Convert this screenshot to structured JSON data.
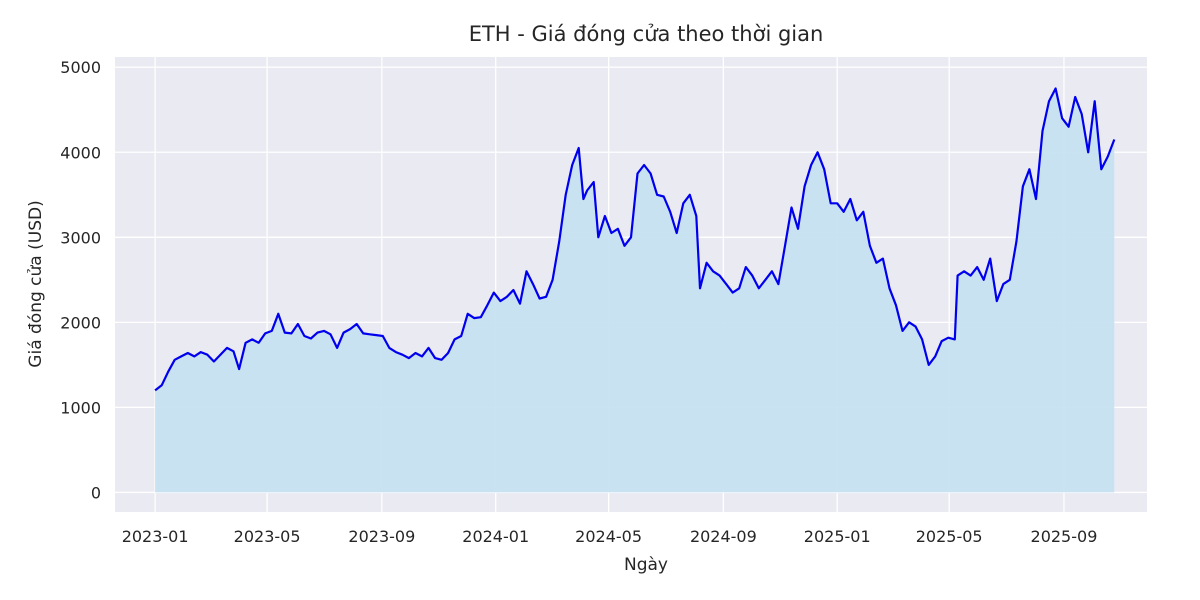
{
  "chart_data": {
    "type": "area",
    "title": "ETH - Giá đóng cửa theo thời gian",
    "xlabel": "Ngày",
    "ylabel": "Giá đóng cửa (USD)",
    "xlim": [
      "2022-11-19",
      "2025-11-29"
    ],
    "ylim": [
      -230,
      5120
    ],
    "grid": true,
    "legend": "none",
    "line_color": "#0000ee",
    "fill_color": "#c6e1f1",
    "plot_background": "#eaeaf2",
    "y_ticks": [
      0,
      1000,
      2000,
      3000,
      4000,
      5000
    ],
    "x_ticks": [
      {
        "date": "2023-01-01",
        "label": "2023-01"
      },
      {
        "date": "2023-05-01",
        "label": "2023-05"
      },
      {
        "date": "2023-09-01",
        "label": "2023-09"
      },
      {
        "date": "2024-01-01",
        "label": "2024-01"
      },
      {
        "date": "2024-05-01",
        "label": "2024-05"
      },
      {
        "date": "2024-09-01",
        "label": "2024-09"
      },
      {
        "date": "2025-01-01",
        "label": "2025-01"
      },
      {
        "date": "2025-05-01",
        "label": "2025-05"
      },
      {
        "date": "2025-09-01",
        "label": "2025-09"
      }
    ],
    "series": [
      {
        "points": [
          [
            "2023-01-01",
            1200
          ],
          [
            "2023-01-08",
            1260
          ],
          [
            "2023-01-15",
            1420
          ],
          [
            "2023-01-22",
            1560
          ],
          [
            "2023-01-29",
            1600
          ],
          [
            "2023-02-05",
            1640
          ],
          [
            "2023-02-12",
            1600
          ],
          [
            "2023-02-19",
            1650
          ],
          [
            "2023-02-26",
            1620
          ],
          [
            "2023-03-05",
            1540
          ],
          [
            "2023-03-12",
            1620
          ],
          [
            "2023-03-19",
            1700
          ],
          [
            "2023-03-26",
            1660
          ],
          [
            "2023-04-01",
            1450
          ],
          [
            "2023-04-08",
            1760
          ],
          [
            "2023-04-15",
            1800
          ],
          [
            "2023-04-22",
            1760
          ],
          [
            "2023-04-29",
            1870
          ],
          [
            "2023-05-06",
            1900
          ],
          [
            "2023-05-13",
            2100
          ],
          [
            "2023-05-20",
            1880
          ],
          [
            "2023-05-27",
            1870
          ],
          [
            "2023-06-03",
            1980
          ],
          [
            "2023-06-10",
            1840
          ],
          [
            "2023-06-17",
            1810
          ],
          [
            "2023-06-24",
            1880
          ],
          [
            "2023-07-01",
            1900
          ],
          [
            "2023-07-08",
            1860
          ],
          [
            "2023-07-15",
            1700
          ],
          [
            "2023-07-22",
            1880
          ],
          [
            "2023-07-29",
            1920
          ],
          [
            "2023-08-05",
            1980
          ],
          [
            "2023-08-12",
            1870
          ],
          [
            "2023-08-19",
            1860
          ],
          [
            "2023-08-26",
            1850
          ],
          [
            "2023-09-02",
            1840
          ],
          [
            "2023-09-09",
            1700
          ],
          [
            "2023-09-16",
            1650
          ],
          [
            "2023-09-23",
            1620
          ],
          [
            "2023-09-30",
            1580
          ],
          [
            "2023-10-07",
            1640
          ],
          [
            "2023-10-14",
            1600
          ],
          [
            "2023-10-21",
            1700
          ],
          [
            "2023-10-28",
            1580
          ],
          [
            "2023-11-04",
            1560
          ],
          [
            "2023-11-11",
            1640
          ],
          [
            "2023-11-18",
            1800
          ],
          [
            "2023-11-25",
            1840
          ],
          [
            "2023-12-02",
            2100
          ],
          [
            "2023-12-09",
            2050
          ],
          [
            "2023-12-16",
            2060
          ],
          [
            "2023-12-23",
            2200
          ],
          [
            "2023-12-30",
            2350
          ],
          [
            "2024-01-06",
            2250
          ],
          [
            "2024-01-13",
            2300
          ],
          [
            "2024-01-20",
            2380
          ],
          [
            "2024-01-27",
            2220
          ],
          [
            "2024-02-03",
            2600
          ],
          [
            "2024-02-10",
            2450
          ],
          [
            "2024-02-17",
            2280
          ],
          [
            "2024-02-24",
            2300
          ],
          [
            "2024-03-02",
            2500
          ],
          [
            "2024-03-09",
            2950
          ],
          [
            "2024-03-16",
            3500
          ],
          [
            "2024-03-23",
            3850
          ],
          [
            "2024-03-30",
            4050
          ],
          [
            "2024-04-04",
            3450
          ],
          [
            "2024-04-08",
            3550
          ],
          [
            "2024-04-15",
            3650
          ],
          [
            "2024-04-20",
            3000
          ],
          [
            "2024-04-27",
            3250
          ],
          [
            "2024-05-04",
            3050
          ],
          [
            "2024-05-11",
            3100
          ],
          [
            "2024-05-18",
            2900
          ],
          [
            "2024-05-25",
            3000
          ],
          [
            "2024-06-01",
            3750
          ],
          [
            "2024-06-08",
            3850
          ],
          [
            "2024-06-15",
            3750
          ],
          [
            "2024-06-22",
            3500
          ],
          [
            "2024-06-29",
            3480
          ],
          [
            "2024-07-06",
            3300
          ],
          [
            "2024-07-13",
            3050
          ],
          [
            "2024-07-20",
            3400
          ],
          [
            "2024-07-27",
            3500
          ],
          [
            "2024-08-03",
            3250
          ],
          [
            "2024-08-07",
            2400
          ],
          [
            "2024-08-14",
            2700
          ],
          [
            "2024-08-21",
            2600
          ],
          [
            "2024-08-28",
            2550
          ],
          [
            "2024-09-04",
            2450
          ],
          [
            "2024-09-11",
            2350
          ],
          [
            "2024-09-18",
            2400
          ],
          [
            "2024-09-25",
            2650
          ],
          [
            "2024-10-02",
            2550
          ],
          [
            "2024-10-09",
            2400
          ],
          [
            "2024-10-16",
            2500
          ],
          [
            "2024-10-23",
            2600
          ],
          [
            "2024-10-30",
            2450
          ],
          [
            "2024-11-06",
            2900
          ],
          [
            "2024-11-13",
            3350
          ],
          [
            "2024-11-20",
            3100
          ],
          [
            "2024-11-27",
            3600
          ],
          [
            "2024-12-04",
            3850
          ],
          [
            "2024-12-11",
            4000
          ],
          [
            "2024-12-18",
            3800
          ],
          [
            "2024-12-25",
            3400
          ],
          [
            "2025-01-01",
            3400
          ],
          [
            "2025-01-08",
            3300
          ],
          [
            "2025-01-15",
            3450
          ],
          [
            "2025-01-22",
            3200
          ],
          [
            "2025-01-29",
            3300
          ],
          [
            "2025-02-05",
            2900
          ],
          [
            "2025-02-12",
            2700
          ],
          [
            "2025-02-19",
            2750
          ],
          [
            "2025-02-26",
            2400
          ],
          [
            "2025-03-05",
            2200
          ],
          [
            "2025-03-12",
            1900
          ],
          [
            "2025-03-19",
            2000
          ],
          [
            "2025-03-26",
            1950
          ],
          [
            "2025-04-02",
            1800
          ],
          [
            "2025-04-09",
            1500
          ],
          [
            "2025-04-16",
            1600
          ],
          [
            "2025-04-23",
            1780
          ],
          [
            "2025-04-30",
            1820
          ],
          [
            "2025-05-07",
            1800
          ],
          [
            "2025-05-10",
            2550
          ],
          [
            "2025-05-17",
            2600
          ],
          [
            "2025-05-24",
            2550
          ],
          [
            "2025-05-31",
            2650
          ],
          [
            "2025-06-07",
            2500
          ],
          [
            "2025-06-14",
            2750
          ],
          [
            "2025-06-21",
            2250
          ],
          [
            "2025-06-28",
            2450
          ],
          [
            "2025-07-05",
            2500
          ],
          [
            "2025-07-12",
            2950
          ],
          [
            "2025-07-19",
            3600
          ],
          [
            "2025-07-26",
            3800
          ],
          [
            "2025-08-02",
            3450
          ],
          [
            "2025-08-09",
            4250
          ],
          [
            "2025-08-16",
            4600
          ],
          [
            "2025-08-23",
            4750
          ],
          [
            "2025-08-30",
            4400
          ],
          [
            "2025-09-06",
            4300
          ],
          [
            "2025-09-13",
            4650
          ],
          [
            "2025-09-20",
            4450
          ],
          [
            "2025-09-27",
            4000
          ],
          [
            "2025-10-04",
            4600
          ],
          [
            "2025-10-11",
            3800
          ],
          [
            "2025-10-18",
            3950
          ],
          [
            "2025-10-25",
            4150
          ]
        ]
      }
    ]
  }
}
